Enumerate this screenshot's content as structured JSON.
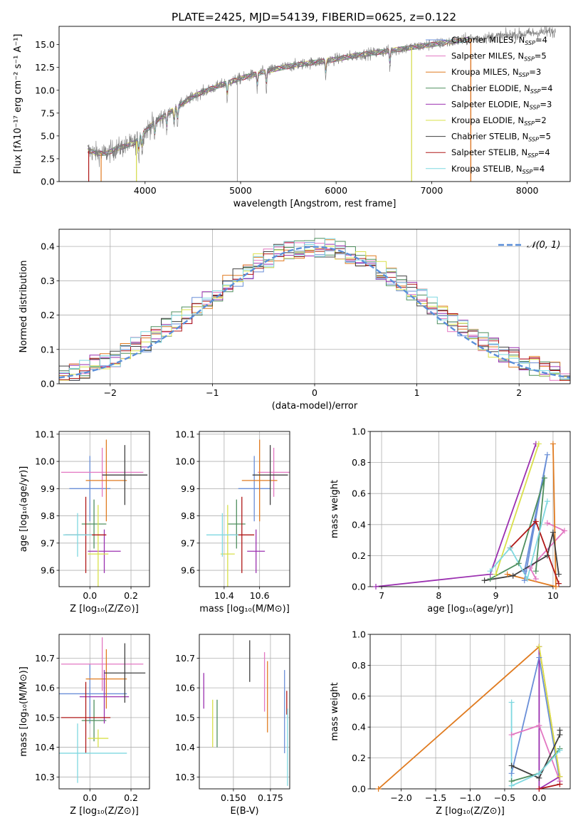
{
  "figure": {
    "title": "PLATE=2425, MJD=54139, FIBERID=0625, z=0.122"
  },
  "colors": {
    "miles_chabrier": "#6a8fd8",
    "miles_salpeter": "#e377c2",
    "miles_kroupa": "#e07b20",
    "elodie_chabrier": "#4f8f5f",
    "elodie_salpeter": "#9b30b0",
    "elodie_kroupa": "#d9e04a",
    "stelib_chabrier": "#404040",
    "stelib_salpeter": "#b01818",
    "stelib_kroupa": "#7fd8e0",
    "gaussian": "#5b8fd9"
  },
  "legend_spectrum": [
    {
      "name": "Chabrier MILES",
      "nssp": "4",
      "color": "miles_chabrier"
    },
    {
      "name": "Salpeter MILES",
      "nssp": "5",
      "color": "miles_salpeter"
    },
    {
      "name": "Kroupa MILES",
      "nssp": "3",
      "color": "miles_kroupa"
    },
    {
      "name": "Chabrier ELODIE",
      "nssp": "4",
      "color": "elodie_chabrier"
    },
    {
      "name": "Salpeter ELODIE",
      "nssp": "3",
      "color": "elodie_salpeter"
    },
    {
      "name": "Kroupa ELODIE",
      "nssp": "2",
      "color": "elodie_kroupa"
    },
    {
      "name": "Chabrier STELIB",
      "nssp": "5",
      "color": "stelib_chabrier"
    },
    {
      "name": "Salpeter STELIB",
      "nssp": "4",
      "color": "stelib_salpeter"
    },
    {
      "name": "Kroupa STELIB",
      "nssp": "4",
      "color": "stelib_kroupa"
    }
  ],
  "chart_data": [
    {
      "id": "spectrum",
      "type": "line",
      "xlabel": "wavelength [Angstrom, rest frame]",
      "ylabel": "Flux [fλ10⁻¹⁷ erg cm⁻² s⁻¹ A⁻¹]",
      "xlim": [
        3100,
        8450
      ],
      "ylim": [
        0,
        17
      ],
      "xticks": [
        4000,
        5000,
        6000,
        7000,
        8000
      ],
      "yticks": [
        0.0,
        2.5,
        5.0,
        7.5,
        10.0,
        12.5,
        15.0
      ],
      "grid": false,
      "legend": "right",
      "continuum_x": [
        3400,
        3500,
        3600,
        3700,
        3800,
        3900,
        4000,
        4100,
        4200,
        4300,
        4400,
        4500,
        4600,
        4800,
        5000,
        5200,
        5400,
        5600,
        5800,
        6000,
        6200,
        6400,
        6600,
        6800,
        7000,
        7200,
        7400,
        7600,
        7800,
        8000,
        8200,
        8300
      ],
      "continuum_y": [
        3.4,
        3.1,
        3.1,
        3.6,
        3.9,
        4.3,
        5.5,
        6.5,
        7.2,
        7.9,
        8.6,
        9.3,
        9.8,
        10.6,
        11.3,
        11.9,
        12.4,
        12.8,
        13.1,
        13.4,
        13.8,
        14.1,
        14.4,
        14.7,
        15.0,
        15.3,
        15.6,
        15.8,
        16.0,
        16.2,
        16.4,
        16.4
      ],
      "absorption_lines": [
        3934,
        3969,
        4101,
        4227,
        4304,
        4340,
        4861,
        5175,
        5270,
        5892,
        6563
      ],
      "model_cutoffs": [
        {
          "series": "stelib_salpeter",
          "from": 3410,
          "to": 7410
        },
        {
          "series": "elodie_kroupa",
          "from": 3910,
          "to": 6790
        },
        {
          "series": "miles_kroupa",
          "from": 3540,
          "to": 7410
        }
      ],
      "spikes": [
        4965,
        3910,
        6790,
        7410
      ]
    },
    {
      "id": "residuals",
      "type": "line",
      "xlabel": "(data-model)/error",
      "ylabel": "Normed distribution",
      "xlim": [
        -2.5,
        2.5
      ],
      "ylim": [
        0,
        0.45
      ],
      "xticks": [
        -2,
        -1,
        0,
        1,
        2
      ],
      "yticks": [
        0.0,
        0.1,
        0.2,
        0.3,
        0.4
      ],
      "grid": true,
      "legend": "top-right",
      "gaussian_label": "𝒩(0, 1)",
      "bin_width": 0.1
    },
    {
      "id": "age_vs_Z",
      "type": "scatter",
      "xlabel": "Z [log₁₀(Z/Z⊙)]",
      "ylabel": "age  [log₁₀(age/yr)]",
      "xlim": [
        -0.15,
        0.29
      ],
      "ylim": [
        9.54,
        10.11
      ],
      "xticks": [
        0.0,
        0.2
      ],
      "yticks": [
        9.6,
        9.7,
        9.8,
        9.9,
        10.0,
        10.1
      ],
      "grid": true,
      "points": [
        {
          "series": "miles_chabrier",
          "x": 0.0,
          "y": 9.9,
          "xerr": 0.1,
          "yerr": 0.12
        },
        {
          "series": "miles_salpeter",
          "x": 0.06,
          "y": 9.96,
          "xerr": 0.2,
          "yerr": 0.09
        },
        {
          "series": "miles_kroupa",
          "x": 0.08,
          "y": 9.93,
          "xerr": 0.1,
          "yerr": 0.15
        },
        {
          "series": "elodie_chabrier",
          "x": 0.02,
          "y": 9.77,
          "xerr": 0.06,
          "yerr": 0.09
        },
        {
          "series": "elodie_salpeter",
          "x": 0.07,
          "y": 9.67,
          "xerr": 0.08,
          "yerr": 0.08
        },
        {
          "series": "elodie_kroupa",
          "x": 0.04,
          "y": 9.66,
          "xerr": 0.05,
          "yerr": 0.18
        },
        {
          "series": "stelib_chabrier",
          "x": 0.17,
          "y": 9.95,
          "xerr": 0.11,
          "yerr": 0.11
        },
        {
          "series": "stelib_salpeter",
          "x": -0.02,
          "y": 9.73,
          "xerr": 0.1,
          "yerr": 0.14
        },
        {
          "series": "stelib_kroupa",
          "x": -0.06,
          "y": 9.73,
          "xerr": 0.07,
          "yerr": 0.08
        }
      ]
    },
    {
      "id": "age_vs_mass",
      "type": "scatter",
      "xlabel": "mass [log₁₀(M/M⊙)]",
      "ylabel": "",
      "xlim": [
        10.26,
        10.77
      ],
      "ylim": [
        9.54,
        10.11
      ],
      "xticks": [
        10.4,
        10.6
      ],
      "yticks": [
        9.6,
        9.7,
        9.8,
        9.9,
        10.0,
        10.1
      ],
      "grid": true,
      "points": [
        {
          "series": "miles_chabrier",
          "x": 10.57,
          "y": 9.9,
          "xerr": 0.09,
          "yerr": 0.12
        },
        {
          "series": "miles_salpeter",
          "x": 10.68,
          "y": 9.96,
          "xerr": 0.09,
          "yerr": 0.09
        },
        {
          "series": "miles_kroupa",
          "x": 10.6,
          "y": 9.93,
          "xerr": 0.1,
          "yerr": 0.15
        },
        {
          "series": "elodie_chabrier",
          "x": 10.47,
          "y": 9.77,
          "xerr": 0.05,
          "yerr": 0.09
        },
        {
          "series": "elodie_salpeter",
          "x": 10.58,
          "y": 9.67,
          "xerr": 0.05,
          "yerr": 0.08
        },
        {
          "series": "elodie_kroupa",
          "x": 10.42,
          "y": 9.66,
          "xerr": 0.04,
          "yerr": 0.18
        },
        {
          "series": "stelib_chabrier",
          "x": 10.66,
          "y": 9.95,
          "xerr": 0.1,
          "yerr": 0.11
        },
        {
          "series": "stelib_salpeter",
          "x": 10.5,
          "y": 9.73,
          "xerr": 0.07,
          "yerr": 0.14
        },
        {
          "series": "stelib_kroupa",
          "x": 10.39,
          "y": 9.73,
          "xerr": 0.09,
          "yerr": 0.08
        }
      ]
    },
    {
      "id": "massweight_vs_age",
      "type": "line",
      "xlabel": "age  [log₁₀(age/yr)]",
      "ylabel": "mass weight",
      "xlim": [
        6.8,
        10.3
      ],
      "ylim": [
        0,
        1.0
      ],
      "xticks": [
        7,
        8,
        9,
        10
      ],
      "yticks": [
        0.0,
        0.2,
        0.4,
        0.6,
        0.8,
        1.0
      ],
      "grid": true,
      "series": [
        {
          "series": "miles_chabrier",
          "x": [
            9.5,
            9.9,
            9.5
          ],
          "y": [
            0.04,
            0.85,
            0.1
          ]
        },
        {
          "series": "miles_salpeter",
          "x": [
            9.9,
            10.2,
            9.6,
            9.7
          ],
          "y": [
            0.41,
            0.36,
            0.12,
            0.05
          ]
        },
        {
          "series": "miles_kroupa",
          "x": [
            10.0,
            10.05,
            9.2
          ],
          "y": [
            0.92,
            0.0,
            0.08
          ]
        },
        {
          "series": "elodie_chabrier",
          "x": [
            8.9,
            9.4,
            9.85,
            9.7
          ],
          "y": [
            0.05,
            0.15,
            0.7,
            0.1
          ]
        },
        {
          "series": "elodie_salpeter",
          "x": [
            6.9,
            8.9,
            9.7
          ],
          "y": [
            0.0,
            0.08,
            0.92
          ]
        },
        {
          "series": "elodie_kroupa",
          "x": [
            9.0,
            9.75
          ],
          "y": [
            0.08,
            0.92
          ]
        },
        {
          "series": "stelib_chabrier",
          "x": [
            8.8,
            9.3,
            9.9,
            10.0,
            10.1
          ],
          "y": [
            0.04,
            0.07,
            0.2,
            0.35,
            0.08
          ]
        },
        {
          "series": "stelib_salpeter",
          "x": [
            9.25,
            9.7,
            10.1
          ],
          "y": [
            0.25,
            0.42,
            0.02
          ]
        },
        {
          "series": "stelib_kroupa",
          "x": [
            8.9,
            9.25,
            9.55,
            9.9
          ],
          "y": [
            0.1,
            0.25,
            0.05,
            0.55
          ]
        }
      ]
    },
    {
      "id": "mass_vs_Z",
      "type": "scatter",
      "xlabel": "Z [log₁₀(Z/Z⊙)]",
      "ylabel": "mass [log₁₀(M/M⊙)]",
      "xlim": [
        -0.15,
        0.29
      ],
      "ylim": [
        10.26,
        10.78
      ],
      "xticks": [
        0.0,
        0.2
      ],
      "yticks": [
        10.3,
        10.4,
        10.5,
        10.6,
        10.7
      ],
      "grid": true,
      "points": [
        {
          "series": "miles_chabrier",
          "x": 0.0,
          "y": 10.58,
          "xerr": 0.18,
          "yerr": 0.1
        },
        {
          "series": "miles_salpeter",
          "x": 0.06,
          "y": 10.68,
          "xerr": 0.2,
          "yerr": 0.09
        },
        {
          "series": "miles_kroupa",
          "x": 0.08,
          "y": 10.63,
          "xerr": 0.1,
          "yerr": 0.1
        },
        {
          "series": "elodie_chabrier",
          "x": 0.02,
          "y": 10.49,
          "xerr": 0.06,
          "yerr": 0.07
        },
        {
          "series": "elodie_salpeter",
          "x": 0.07,
          "y": 10.57,
          "xerr": 0.12,
          "yerr": 0.09
        },
        {
          "series": "elodie_kroupa",
          "x": 0.04,
          "y": 10.43,
          "xerr": 0.05,
          "yerr": 0.03
        },
        {
          "series": "stelib_chabrier",
          "x": 0.17,
          "y": 10.65,
          "xerr": 0.1,
          "yerr": 0.1
        },
        {
          "series": "stelib_salpeter",
          "x": -0.02,
          "y": 10.5,
          "xerr": 0.12,
          "yerr": 0.12
        },
        {
          "series": "stelib_kroupa",
          "x": -0.06,
          "y": 10.38,
          "xerr": 0.24,
          "yerr": 0.1
        }
      ]
    },
    {
      "id": "mass_vs_EBV",
      "type": "scatter",
      "xlabel": "E(B-V)",
      "ylabel": "",
      "xlim": [
        0.127,
        0.188
      ],
      "ylim": [
        10.26,
        10.78
      ],
      "xticks": [
        0.15,
        0.175
      ],
      "yticks": [
        10.3,
        10.4,
        10.5,
        10.6,
        10.7
      ],
      "grid": true,
      "points": [
        {
          "series": "miles_chabrier",
          "x": 0.1845,
          "y": 10.52,
          "yerr": 0.14
        },
        {
          "series": "miles_salpeter",
          "x": 0.171,
          "y": 10.62,
          "yerr": 0.1
        },
        {
          "series": "miles_kroupa",
          "x": 0.173,
          "y": 10.57,
          "yerr": 0.12
        },
        {
          "series": "elodie_chabrier",
          "x": 0.139,
          "y": 10.48,
          "yerr": 0.08
        },
        {
          "series": "elodie_salpeter",
          "x": 0.13,
          "y": 10.59,
          "yerr": 0.06
        },
        {
          "series": "elodie_kroupa",
          "x": 0.136,
          "y": 10.48,
          "yerr": 0.08
        },
        {
          "series": "stelib_chabrier",
          "x": 0.161,
          "y": 10.69,
          "yerr": 0.07
        },
        {
          "series": "stelib_salpeter",
          "x": 0.186,
          "y": 10.55,
          "yerr": 0.04
        },
        {
          "series": "stelib_kroupa",
          "x": 0.1865,
          "y": 10.4,
          "yerr": 0.13
        }
      ]
    },
    {
      "id": "massweight_vs_Z",
      "type": "line",
      "xlabel": "Z [log₁₀(Z/Z⊙)]",
      "ylabel": "mass weight",
      "xlim": [
        -2.45,
        0.45
      ],
      "ylim": [
        0,
        1.0
      ],
      "xticks": [
        -2.0,
        -1.5,
        -1.0,
        -0.5,
        0.0
      ],
      "yticks": [
        0.0,
        0.2,
        0.4,
        0.6,
        0.8,
        1.0
      ],
      "grid": true,
      "series": [
        {
          "series": "miles_chabrier",
          "x": [
            -0.4,
            0.0,
            0.3
          ],
          "y": [
            0.1,
            0.85,
            0.05
          ]
        },
        {
          "series": "miles_salpeter",
          "x": [
            -0.4,
            0.0,
            0.3
          ],
          "y": [
            0.35,
            0.41,
            0.05
          ]
        },
        {
          "series": "miles_kroupa",
          "x": [
            -2.33,
            0.0,
            0.3
          ],
          "y": [
            0.0,
            0.92,
            0.08
          ]
        },
        {
          "series": "elodie_chabrier",
          "x": [
            -0.4,
            0.0,
            0.3
          ],
          "y": [
            0.05,
            0.1,
            0.26
          ]
        },
        {
          "series": "elodie_salpeter",
          "x": [
            0.0,
            0.0,
            0.3
          ],
          "y": [
            0.92,
            0.0,
            0.08
          ]
        },
        {
          "series": "elodie_kroupa",
          "x": [
            0.0,
            0.3
          ],
          "y": [
            0.92,
            0.08
          ]
        },
        {
          "series": "stelib_chabrier",
          "x": [
            -0.4,
            0.0,
            0.3,
            0.3
          ],
          "y": [
            0.15,
            0.07,
            0.35,
            0.38
          ]
        },
        {
          "series": "stelib_salpeter",
          "x": [
            0.0,
            0.3
          ],
          "y": [
            0.0,
            0.03
          ]
        },
        {
          "series": "stelib_kroupa",
          "x": [
            -0.4,
            -0.4,
            0.0,
            0.3
          ],
          "y": [
            0.56,
            0.02,
            0.1,
            0.25
          ]
        }
      ]
    }
  ]
}
